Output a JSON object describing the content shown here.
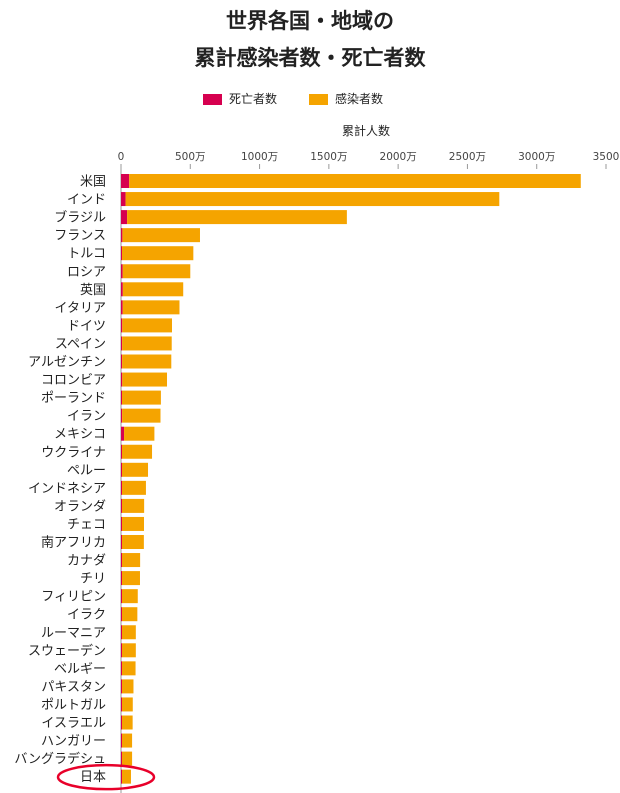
{
  "title_line1": "世界各国・地域の",
  "title_line2": "累計感染者数・死亡者数",
  "colors": {
    "deaths": "#d6004f",
    "cases": "#f5a400",
    "highlight": "#e8002a",
    "axis": "#999999"
  },
  "chart_data": {
    "type": "bar",
    "orientation": "horizontal",
    "stacked": true,
    "xlabel": "累計人数",
    "xlim": [
      0,
      3500
    ],
    "x_unit": "万",
    "x_ticks": [
      {
        "value": 0,
        "label": "0"
      },
      {
        "value": 500,
        "label": "500万"
      },
      {
        "value": 1000,
        "label": "1000万"
      },
      {
        "value": 1500,
        "label": "1500万"
      },
      {
        "value": 2000,
        "label": "2000万"
      },
      {
        "value": 2500,
        "label": "2500万"
      },
      {
        "value": 3000,
        "label": "3000万"
      },
      {
        "value": 3500,
        "label": "3500"
      }
    ],
    "legend_position": "top-center",
    "series": [
      {
        "name": "死亡者数",
        "color": "#d6004f"
      },
      {
        "name": "感染者数",
        "color": "#f5a400"
      }
    ],
    "highlighted_category": "日本",
    "rows": [
      {
        "label": "米国",
        "deaths": 59,
        "cases": 3318
      },
      {
        "label": "インド",
        "deaths": 33,
        "cases": 2730
      },
      {
        "label": "ブラジル",
        "deaths": 44,
        "cases": 1630
      },
      {
        "label": "フランス",
        "deaths": 10,
        "cases": 570
      },
      {
        "label": "トルコ",
        "deaths": 5,
        "cases": 522
      },
      {
        "label": "ロシア",
        "deaths": 12,
        "cases": 500
      },
      {
        "label": "英国",
        "deaths": 13,
        "cases": 449
      },
      {
        "label": "イタリア",
        "deaths": 12,
        "cases": 422
      },
      {
        "label": "ドイツ",
        "deaths": 9,
        "cases": 368
      },
      {
        "label": "スペイン",
        "deaths": 8,
        "cases": 366
      },
      {
        "label": "アルゼンチン",
        "deaths": 8,
        "cases": 363
      },
      {
        "label": "コロンビア",
        "deaths": 9,
        "cases": 332
      },
      {
        "label": "ポーランド",
        "deaths": 7,
        "cases": 288
      },
      {
        "label": "イラン",
        "deaths": 8,
        "cases": 285
      },
      {
        "label": "メキシコ",
        "deaths": 22,
        "cases": 241
      },
      {
        "label": "ウクライナ",
        "deaths": 5,
        "cases": 224
      },
      {
        "label": "ペルー",
        "deaths": 7,
        "cases": 195
      },
      {
        "label": "インドネシア",
        "deaths": 5,
        "cases": 180
      },
      {
        "label": "オランダ",
        "deaths": 2,
        "cases": 167
      },
      {
        "label": "チェコ",
        "deaths": 3,
        "cases": 166
      },
      {
        "label": "南アフリカ",
        "deaths": 6,
        "cases": 165
      },
      {
        "label": "カナダ",
        "deaths": 3,
        "cases": 138
      },
      {
        "label": "チリ",
        "deaths": 3,
        "cases": 137
      },
      {
        "label": "フィリピン",
        "deaths": 2,
        "cases": 121
      },
      {
        "label": "イラク",
        "deaths": 2,
        "cases": 118
      },
      {
        "label": "ルーマニア",
        "deaths": 3,
        "cases": 107
      },
      {
        "label": "スウェーデン",
        "deaths": 1,
        "cases": 107
      },
      {
        "label": "ベルギー",
        "deaths": 2,
        "cases": 105
      },
      {
        "label": "パキスタン",
        "deaths": 2,
        "cases": 90
      },
      {
        "label": "ポルトガル",
        "deaths": 2,
        "cases": 85
      },
      {
        "label": "イスラエル",
        "deaths": 1,
        "cases": 84
      },
      {
        "label": "ハンガリー",
        "deaths": 3,
        "cases": 80
      },
      {
        "label": "バングラデシュ",
        "deaths": 1,
        "cases": 80
      },
      {
        "label": "日本",
        "deaths": 1,
        "cases": 72
      }
    ]
  }
}
